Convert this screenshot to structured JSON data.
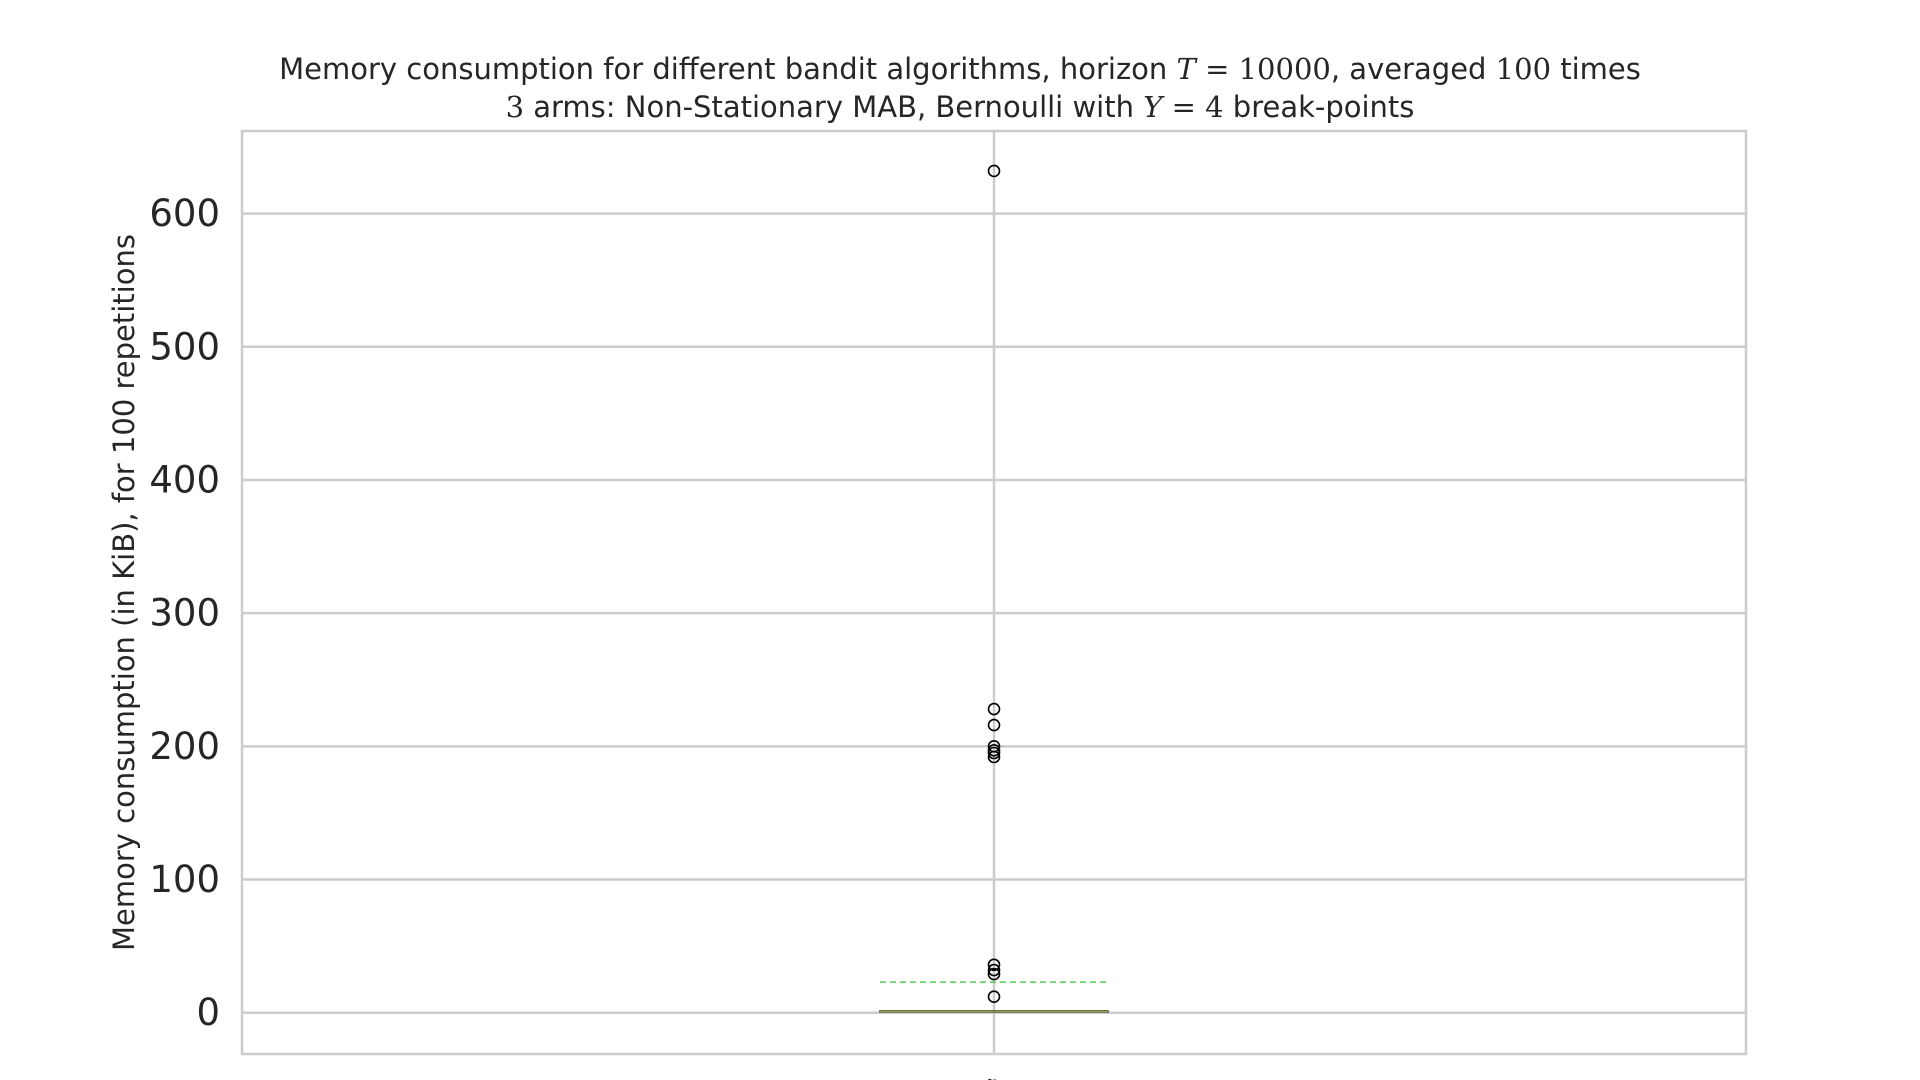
{
  "chart_data": {
    "type": "box",
    "title": {
      "line1": {
        "prefix": "Memory consumption for different bandit algorithms, horizon ",
        "math_var": "T",
        "math_eq": " = ",
        "math_val": "10000",
        "middle": ", averaged ",
        "repeats": "100",
        "suffix": " times"
      },
      "line2": {
        "arms": "3",
        "middle": " arms: Non-Stationary MAB, Bernoulli with ",
        "math_var": "Υ",
        "math_eq": " = ",
        "math_val": "4",
        "suffix": " break-points"
      }
    },
    "ylabel": "Memory consumption (in KiB), for 100 repetitions",
    "xlabel": "",
    "ylim": [
      -31,
      662
    ],
    "yticks": [
      0,
      100,
      200,
      300,
      400,
      500,
      600
    ],
    "ytick_labels": [
      "0",
      "100",
      "200",
      "300",
      "400",
      "500",
      "600"
    ],
    "grid": true,
    "categories": [
      "B"
    ],
    "boxes": [
      {
        "label": "B",
        "q1": 0.5,
        "median": 1,
        "q3": 1.5,
        "whisker_low": 0,
        "whisker_high": 2,
        "mean": 23,
        "fliers": [
          632,
          228,
          216,
          200,
          197,
          195,
          192,
          36,
          32,
          29,
          12
        ]
      }
    ],
    "colors": {
      "grid": "#cccccc",
      "frame": "#cccccc",
      "text": "#262626",
      "median": "#8c9c48",
      "mean_line": "#55cc55",
      "flier": "#000000"
    }
  }
}
